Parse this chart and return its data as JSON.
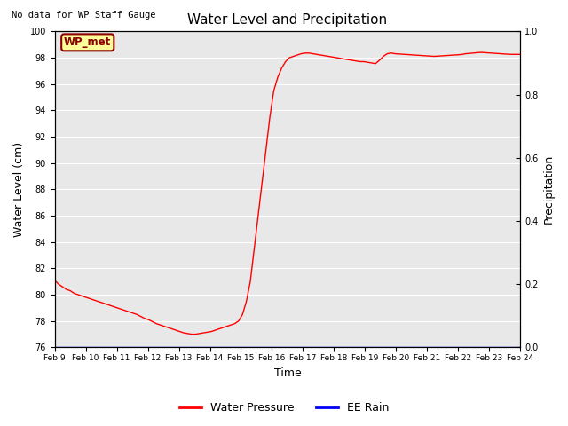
{
  "title": "Water Level and Precipitation",
  "subtitle": "No data for WP Staff Gauge",
  "xlabel": "Time",
  "ylabel_left": "Water Level (cm)",
  "ylabel_right": "Precipitation",
  "legend_label_1": "Water Pressure",
  "legend_label_2": "EE Rain",
  "legend_color_1": "red",
  "legend_color_2": "blue",
  "wp_met_label": "WP_met",
  "wp_met_bg": "#ffff99",
  "wp_met_border": "#8B0000",
  "ylim_left": [
    76,
    100
  ],
  "ylim_right": [
    0.0,
    1.0
  ],
  "yticks_left": [
    76,
    78,
    80,
    82,
    84,
    86,
    88,
    90,
    92,
    94,
    96,
    98,
    100
  ],
  "yticks_right": [
    0.0,
    0.2,
    0.4,
    0.6,
    0.8,
    1.0
  ],
  "x_tick_labels": [
    "Feb 9",
    "Feb 10",
    "Feb 11",
    "Feb 12",
    "Feb 13",
    "Feb 14",
    "Feb 15",
    "Feb 16",
    "Feb 17",
    "Feb 18",
    "Feb 19",
    "Feb 20",
    "Feb 21",
    "Feb 22",
    "Feb 23",
    "Feb 24"
  ],
  "bg_color": "#e8e8e8",
  "line_color": "red",
  "rain_color": "blue",
  "water_pressure": [
    81.1,
    80.8,
    80.6,
    80.4,
    80.3,
    80.1,
    80.0,
    79.9,
    79.8,
    79.7,
    79.6,
    79.5,
    79.4,
    79.3,
    79.2,
    79.1,
    79.0,
    78.9,
    78.8,
    78.7,
    78.6,
    78.5,
    78.35,
    78.2,
    78.1,
    77.95,
    77.8,
    77.7,
    77.6,
    77.5,
    77.4,
    77.3,
    77.2,
    77.1,
    77.05,
    77.0,
    77.0,
    77.05,
    77.1,
    77.15,
    77.2,
    77.3,
    77.4,
    77.5,
    77.6,
    77.7,
    77.8,
    78.0,
    78.5,
    79.5,
    81.0,
    83.5,
    86.0,
    88.5,
    91.0,
    93.5,
    95.5,
    96.5,
    97.2,
    97.7,
    98.0,
    98.1,
    98.2,
    98.3,
    98.35,
    98.35,
    98.3,
    98.25,
    98.2,
    98.15,
    98.1,
    98.05,
    98.0,
    97.95,
    97.9,
    97.85,
    97.8,
    97.75,
    97.7,
    97.7,
    97.65,
    97.6,
    97.55,
    97.8,
    98.1,
    98.3,
    98.35,
    98.3,
    98.28,
    98.26,
    98.24,
    98.22,
    98.2,
    98.18,
    98.16,
    98.14,
    98.12,
    98.1,
    98.12,
    98.14,
    98.16,
    98.18,
    98.2,
    98.22,
    98.24,
    98.3,
    98.32,
    98.35,
    98.38,
    98.4,
    98.38,
    98.36,
    98.34,
    98.32,
    98.3,
    98.28,
    98.26,
    98.25,
    98.25,
    98.25
  ]
}
